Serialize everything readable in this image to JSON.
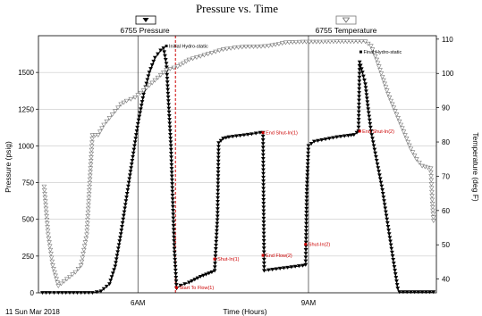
{
  "chart_data": {
    "type": "line",
    "title": "Pressure vs. Time",
    "xlabel": "Time (Hours)",
    "ylabel": "Pressure (psig)",
    "y2label": "Temperature (deg F)",
    "date_label": "11 Sun Mar 2018",
    "xlim": [
      4.25,
      11.25
    ],
    "ylim": [
      0,
      1750
    ],
    "y2lim": [
      36,
      111
    ],
    "x_ticks": [
      {
        "value": 6,
        "label": "6AM"
      },
      {
        "value": 9,
        "label": "9AM"
      }
    ],
    "y_ticks": [
      0,
      250,
      500,
      750,
      1000,
      1250,
      1500
    ],
    "y2_ticks": [
      40,
      50,
      60,
      70,
      80,
      90,
      100,
      110
    ],
    "grid": true,
    "legend": [
      {
        "name": "6755 Pressure",
        "marker": "filled-triangle-down"
      },
      {
        "name": "6755 Temperature",
        "marker": "open-triangle-down"
      }
    ],
    "series": [
      {
        "name": "6755 Pressure",
        "axis": "left",
        "color": "#000000",
        "marker": "filled-triangle-down",
        "points": [
          [
            4.32,
            0
          ],
          [
            4.45,
            0
          ],
          [
            4.6,
            0
          ],
          [
            4.8,
            0
          ],
          [
            5.0,
            0
          ],
          [
            5.2,
            0
          ],
          [
            5.35,
            10
          ],
          [
            5.5,
            60
          ],
          [
            5.6,
            180
          ],
          [
            5.7,
            400
          ],
          [
            5.8,
            650
          ],
          [
            5.9,
            900
          ],
          [
            6.0,
            1150
          ],
          [
            6.1,
            1350
          ],
          [
            6.2,
            1500
          ],
          [
            6.3,
            1600
          ],
          [
            6.4,
            1650
          ],
          [
            6.45,
            1665
          ],
          [
            6.5,
            1560
          ],
          [
            6.58,
            1000
          ],
          [
            6.64,
            300
          ],
          [
            6.68,
            30
          ],
          [
            6.75,
            50
          ],
          [
            6.9,
            70
          ],
          [
            7.0,
            90
          ],
          [
            7.1,
            110
          ],
          [
            7.2,
            125
          ],
          [
            7.3,
            140
          ],
          [
            7.35,
            150
          ],
          [
            7.4,
            520
          ],
          [
            7.42,
            1020
          ],
          [
            7.5,
            1050
          ],
          [
            7.6,
            1060
          ],
          [
            7.8,
            1070
          ],
          [
            8.0,
            1080
          ],
          [
            8.15,
            1090
          ],
          [
            8.2,
            1090
          ],
          [
            8.22,
            150
          ],
          [
            8.3,
            155
          ],
          [
            8.5,
            165
          ],
          [
            8.7,
            175
          ],
          [
            8.9,
            185
          ],
          [
            8.95,
            190
          ],
          [
            8.97,
            700
          ],
          [
            9.0,
            1000
          ],
          [
            9.1,
            1030
          ],
          [
            9.3,
            1045
          ],
          [
            9.5,
            1060
          ],
          [
            9.7,
            1070
          ],
          [
            9.8,
            1075
          ],
          [
            9.85,
            1090
          ],
          [
            9.88,
            1100
          ],
          [
            9.9,
            1570
          ],
          [
            9.95,
            1500
          ],
          [
            10.0,
            1420
          ],
          [
            10.05,
            1250
          ],
          [
            10.1,
            1100
          ],
          [
            10.2,
            900
          ],
          [
            10.3,
            700
          ],
          [
            10.4,
            450
          ],
          [
            10.5,
            200
          ],
          [
            10.57,
            30
          ],
          [
            10.6,
            5
          ],
          [
            10.8,
            5
          ],
          [
            11.0,
            5
          ],
          [
            11.2,
            5
          ]
        ]
      },
      {
        "name": "6755 Temperature",
        "axis": "right",
        "color": "#7a7a7a",
        "marker": "open-triangle-down",
        "points": [
          [
            4.35,
            67
          ],
          [
            4.42,
            53
          ],
          [
            4.5,
            44
          ],
          [
            4.6,
            38
          ],
          [
            4.75,
            40
          ],
          [
            4.9,
            42
          ],
          [
            5.0,
            44
          ],
          [
            5.1,
            53
          ],
          [
            5.2,
            82
          ],
          [
            5.3,
            82
          ],
          [
            5.4,
            85
          ],
          [
            5.5,
            87
          ],
          [
            5.6,
            89
          ],
          [
            5.7,
            91
          ],
          [
            5.8,
            92
          ],
          [
            5.95,
            93
          ],
          [
            6.1,
            95
          ],
          [
            6.3,
            98
          ],
          [
            6.5,
            101
          ],
          [
            6.7,
            102
          ],
          [
            6.9,
            104
          ],
          [
            7.1,
            105
          ],
          [
            7.3,
            106
          ],
          [
            7.5,
            107
          ],
          [
            7.7,
            107.5
          ],
          [
            7.9,
            107.8
          ],
          [
            8.1,
            107.8
          ],
          [
            8.3,
            108
          ],
          [
            8.6,
            109
          ],
          [
            8.9,
            109.2
          ],
          [
            9.2,
            109.2
          ],
          [
            9.5,
            109.3
          ],
          [
            9.8,
            109.3
          ],
          [
            10.0,
            109.3
          ],
          [
            10.1,
            108
          ],
          [
            10.2,
            104
          ],
          [
            10.3,
            99
          ],
          [
            10.4,
            94
          ],
          [
            10.5,
            90
          ],
          [
            10.6,
            86
          ],
          [
            10.7,
            82
          ],
          [
            10.8,
            78
          ],
          [
            10.9,
            75
          ],
          [
            11.0,
            73
          ],
          [
            11.1,
            72.5
          ],
          [
            11.15,
            72.3
          ],
          [
            11.18,
            62
          ],
          [
            11.2,
            57
          ]
        ]
      }
    ],
    "annotations": [
      {
        "text": "Initial Hydro-static",
        "x": 6.5,
        "y": 1680,
        "color": "#000000"
      },
      {
        "text": "Start To Flow(1)",
        "x": 6.68,
        "y": 35,
        "color": "#cc0000"
      },
      {
        "text": "Shut-In(1)",
        "x": 7.35,
        "y": 230,
        "color": "#cc0000"
      },
      {
        "text": "End Shut-In(1)",
        "x": 8.2,
        "y": 1090,
        "color": "#cc0000"
      },
      {
        "text": "End Flow(2)",
        "x": 8.2,
        "y": 255,
        "color": "#cc0000"
      },
      {
        "text": "Shut-In(2)",
        "x": 8.95,
        "y": 330,
        "color": "#cc0000"
      },
      {
        "text": "End Shut-In(2)",
        "x": 9.9,
        "y": 1100,
        "color": "#cc0000"
      },
      {
        "text": "Final Hydro-static",
        "x": 9.92,
        "y": 1640,
        "color": "#000000"
      }
    ],
    "vertical_line": {
      "x": 6.66,
      "color": "#cc0000",
      "style": "dashed"
    }
  }
}
